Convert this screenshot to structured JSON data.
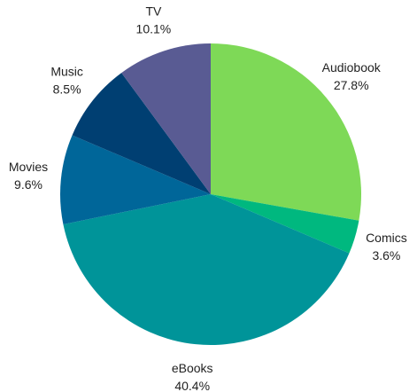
{
  "chart_data": {
    "type": "pie",
    "start_angle_deg": 0,
    "direction": "clockwise",
    "slices": [
      {
        "label": "Audiobook",
        "value": 27.8,
        "value_label": "27.8%",
        "color": "#7ed957"
      },
      {
        "label": "Comics",
        "value": 3.6,
        "value_label": "3.6%",
        "color": "#00b87f"
      },
      {
        "label": "eBooks",
        "value": 40.4,
        "value_label": "40.4%",
        "color": "#009499"
      },
      {
        "label": "Movies",
        "value": 9.6,
        "value_label": "9.6%",
        "color": "#006699"
      },
      {
        "label": "Music",
        "value": 8.5,
        "value_label": "8.5%",
        "color": "#003f72"
      },
      {
        "label": "TV",
        "value": 10.1,
        "value_label": "10.1%",
        "color": "#595b93"
      }
    ]
  }
}
